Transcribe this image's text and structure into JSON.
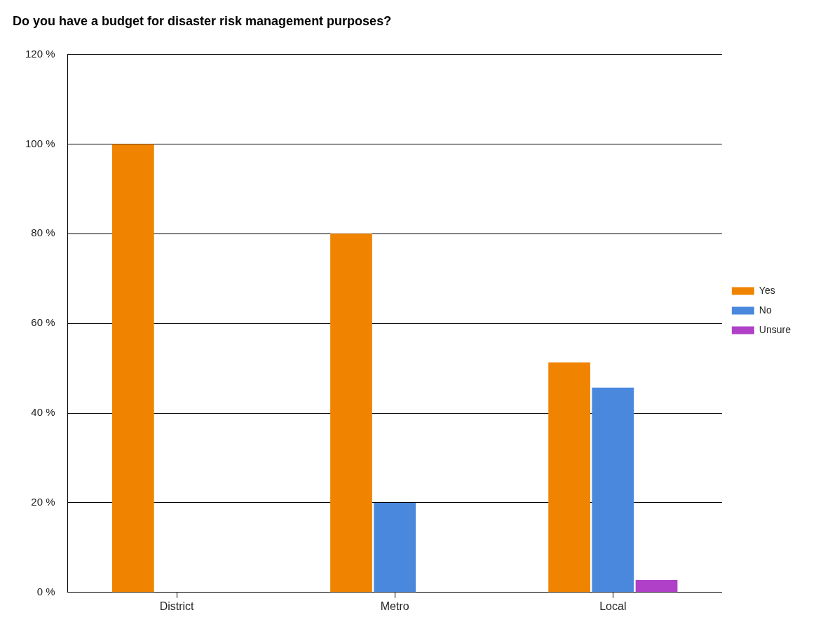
{
  "chart_data": {
    "type": "bar",
    "title": "Do you have a budget for disaster risk management purposes?",
    "categories": [
      "District",
      "Metro",
      "Local"
    ],
    "series": [
      {
        "name": "Yes",
        "color": "#f08400",
        "values": [
          100,
          80,
          51.3
        ]
      },
      {
        "name": "No",
        "color": "#4a88de",
        "values": [
          0,
          20,
          45.7
        ]
      },
      {
        "name": "Unsure",
        "color": "#b040c8",
        "values": [
          0,
          0,
          2.8
        ]
      }
    ],
    "ylim": [
      0,
      120
    ],
    "yticks": [
      {
        "value": 0,
        "label": "0 %"
      },
      {
        "value": 20,
        "label": "20 %"
      },
      {
        "value": 40,
        "label": "40 %"
      },
      {
        "value": 60,
        "label": "60 %"
      },
      {
        "value": 80,
        "label": "80 %"
      },
      {
        "value": 100,
        "label": "100 %"
      },
      {
        "value": 120,
        "label": "120 %"
      }
    ],
    "grid": "y",
    "legend": "right"
  }
}
